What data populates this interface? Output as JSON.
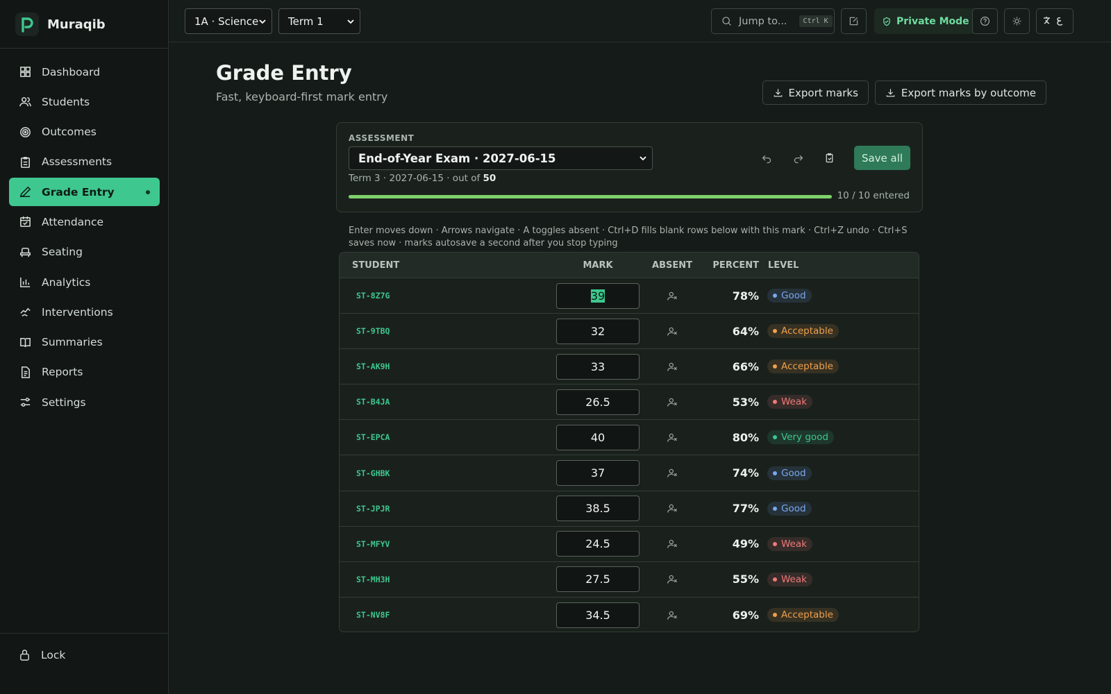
{
  "app": {
    "name": "Muraqib"
  },
  "nav": {
    "items": [
      "Dashboard",
      "Students",
      "Outcomes",
      "Assessments",
      "Grade Entry",
      "Attendance",
      "Seating",
      "Analytics",
      "Interventions",
      "Summaries",
      "Reports",
      "Settings"
    ],
    "active_index": 4,
    "footer": "Lock"
  },
  "topbar": {
    "class_select": "1A · Science",
    "term_select": "Term 1",
    "search": "Jump to...",
    "shortcut": "Ctrl K",
    "private_mode": "Private Mode"
  },
  "header": {
    "title": "Grade Entry",
    "subtitle": "Fast, keyboard-first mark entry",
    "actions": [
      "Export marks",
      "Export marks by outcome"
    ]
  },
  "assessment": {
    "label": "ASSESSMENT",
    "selected": "End-of-Year Exam · 2027-06-15",
    "meta": "Term 3 · 2027-06-15 · out of",
    "out_of": 50,
    "save": "Save all",
    "progress": {
      "entered": 10,
      "separator": "/",
      "total": 10,
      "unit": "entered"
    }
  },
  "hint": "Enter moves down · Arrows navigate · A toggles absent · Ctrl+D fills blank rows below with this mark · Ctrl+Z undo · Ctrl+S saves now · marks autosave a second after you stop typing",
  "table": {
    "columns": [
      "STUDENT",
      "MARK",
      "ABSENT",
      "PERCENT",
      "LEVEL"
    ],
    "rows": [
      {
        "student": "ST-8Z7G",
        "mark": 39,
        "percent": "78%",
        "level": "Good",
        "level_color": "#7aa7f0"
      },
      {
        "student": "ST-9TBQ",
        "mark": 32,
        "percent": "64%",
        "level": "Acceptable",
        "level_color": "#f0a04a"
      },
      {
        "student": "ST-AK9H",
        "mark": 33,
        "percent": "66%",
        "level": "Acceptable",
        "level_color": "#f0a04a"
      },
      {
        "student": "ST-B4JA",
        "mark": 26.5,
        "percent": "53%",
        "level": "Weak",
        "level_color": "#f07a7a"
      },
      {
        "student": "ST-EPCA",
        "mark": 40,
        "percent": "80%",
        "level": "Very good",
        "level_color": "#3ec78e"
      },
      {
        "student": "ST-GHBK",
        "mark": 37,
        "percent": "74%",
        "level": "Good",
        "level_color": "#7aa7f0"
      },
      {
        "student": "ST-JPJR",
        "mark": 38.5,
        "percent": "77%",
        "level": "Good",
        "level_color": "#7aa7f0"
      },
      {
        "student": "ST-MFYV",
        "mark": 24.5,
        "percent": "49%",
        "level": "Weak",
        "level_color": "#f07a7a"
      },
      {
        "student": "ST-MH3H",
        "mark": 27.5,
        "percent": "55%",
        "level": "Weak",
        "level_color": "#f07a7a"
      },
      {
        "student": "ST-NV8F",
        "mark": 34.5,
        "percent": "69%",
        "level": "Acceptable",
        "level_color": "#f0a04a"
      }
    ]
  }
}
